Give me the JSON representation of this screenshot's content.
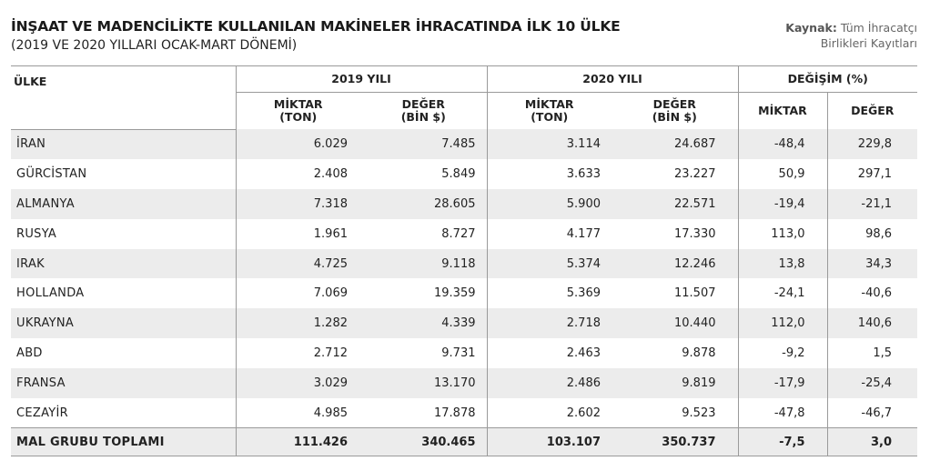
{
  "title": "İNŞAAT VE MADENCİLİKTE KULLANILAN MAKİNELER İHRACATINDA İLK 10 ÜLKE",
  "subtitle": "(2019 VE 2020 YILLARI OCAK-MART DÖNEMİ)",
  "source": {
    "label": "Kaynak:",
    "line1": "Tüm İhracatçı",
    "line2": "Birlikleri Kayıtları"
  },
  "headers": {
    "country": "ÜLKE",
    "group_2019": "2019 YILI",
    "group_2020": "2020 YILI",
    "group_change": "DEĞİŞİM (%)",
    "miktar_ton": [
      "MİKTAR",
      "(TON)"
    ],
    "deger_bin": [
      "DEĞER",
      "(BİN $)"
    ],
    "miktar": "MİKTAR",
    "deger": "DEĞER"
  },
  "rows": [
    {
      "country": "İRAN",
      "m2019": "6.029",
      "d2019": "7.485",
      "m2020": "3.114",
      "d2020": "24.687",
      "cm": "-48,4",
      "cd": "229,8"
    },
    {
      "country": "GÜRCİSTAN",
      "m2019": "2.408",
      "d2019": "5.849",
      "m2020": "3.633",
      "d2020": "23.227",
      "cm": "50,9",
      "cd": "297,1"
    },
    {
      "country": "ALMANYA",
      "m2019": "7.318",
      "d2019": "28.605",
      "m2020": "5.900",
      "d2020": "22.571",
      "cm": "-19,4",
      "cd": "-21,1"
    },
    {
      "country": "RUSYA",
      "m2019": "1.961",
      "d2019": "8.727",
      "m2020": "4.177",
      "d2020": "17.330",
      "cm": "113,0",
      "cd": "98,6"
    },
    {
      "country": "IRAK",
      "m2019": "4.725",
      "d2019": "9.118",
      "m2020": "5.374",
      "d2020": "12.246",
      "cm": "13,8",
      "cd": "34,3"
    },
    {
      "country": "HOLLANDA",
      "m2019": "7.069",
      "d2019": "19.359",
      "m2020": "5.369",
      "d2020": "11.507",
      "cm": "-24,1",
      "cd": "-40,6"
    },
    {
      "country": "UKRAYNA",
      "m2019": "1.282",
      "d2019": "4.339",
      "m2020": "2.718",
      "d2020": "10.440",
      "cm": "112,0",
      "cd": "140,6"
    },
    {
      "country": "ABD",
      "m2019": "2.712",
      "d2019": "9.731",
      "m2020": "2.463",
      "d2020": "9.878",
      "cm": "-9,2",
      "cd": "1,5"
    },
    {
      "country": "FRANSA",
      "m2019": "3.029",
      "d2019": "13.170",
      "m2020": "2.486",
      "d2020": "9.819",
      "cm": "-17,9",
      "cd": "-25,4"
    },
    {
      "country": "CEZAYİR",
      "m2019": "4.985",
      "d2019": "17.878",
      "m2020": "2.602",
      "d2020": "9.523",
      "cm": "-47,8",
      "cd": "-46,7"
    }
  ],
  "total": {
    "country": "MAL GRUBU TOPLAMI",
    "m2019": "111.426",
    "d2019": "340.465",
    "m2020": "103.107",
    "d2020": "350.737",
    "cm": "-7,5",
    "cd": "3,0"
  }
}
